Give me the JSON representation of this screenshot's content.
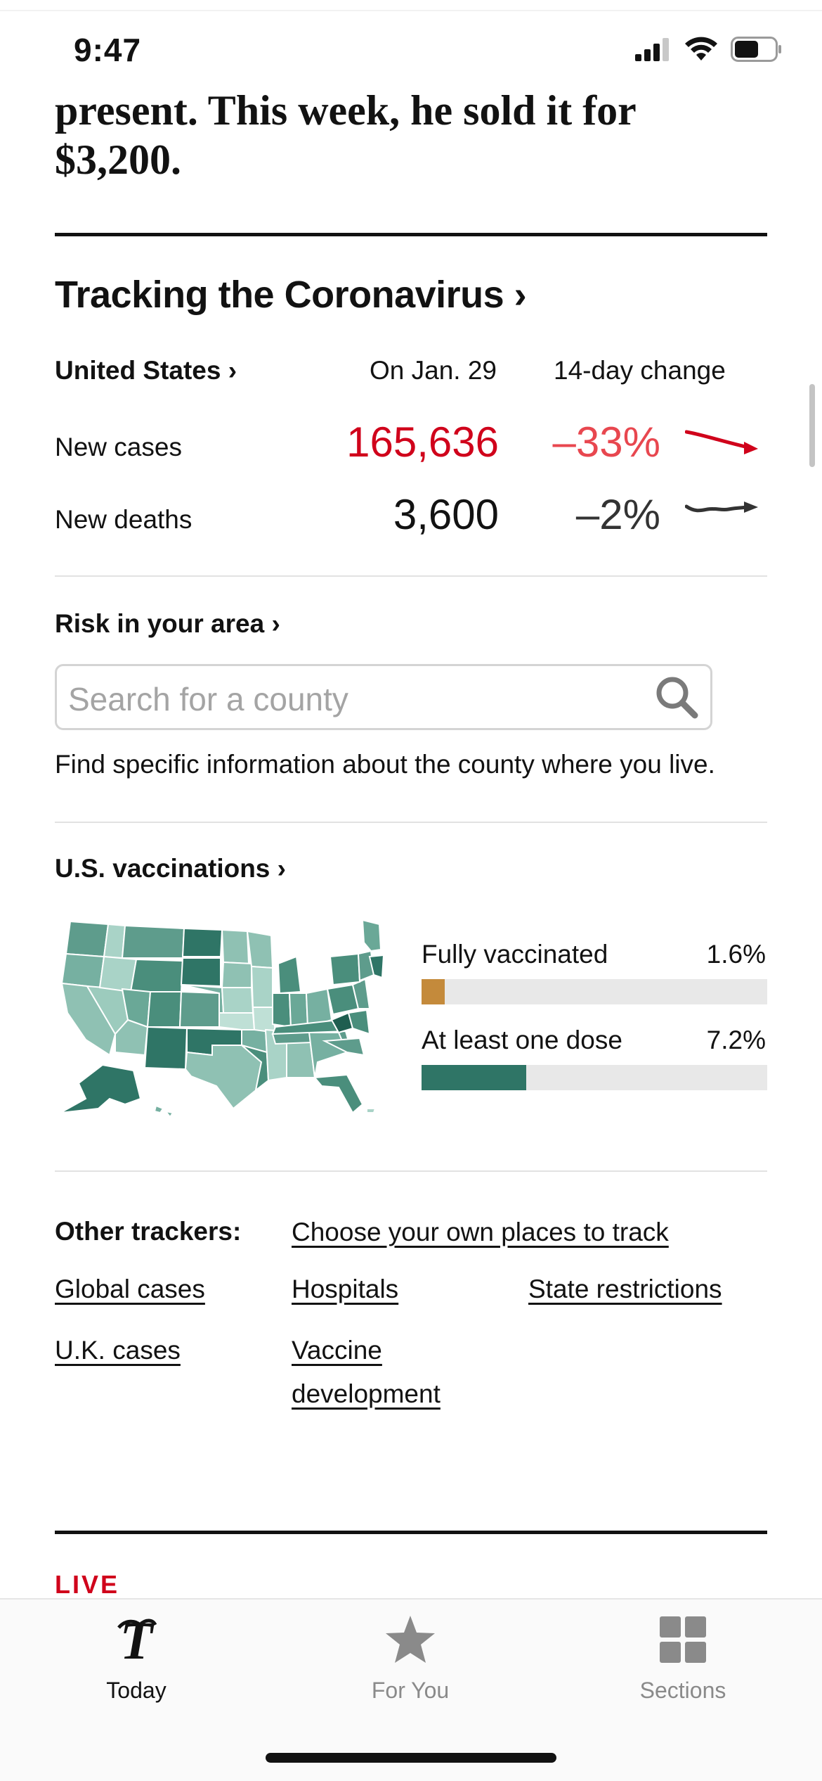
{
  "status_bar": {
    "time": "9:47",
    "battery_level": 0.6
  },
  "article": {
    "headline": "present. This week, he sold it for $3,200."
  },
  "tracker": {
    "title": "Tracking the Coronavirus ›",
    "region_link": "United States ›",
    "date_header": "On Jan. 29",
    "change_header": "14-day change",
    "rows": [
      {
        "label": "New cases",
        "value": "165,636",
        "change": "–33%",
        "color": "#d0021b",
        "change_color": "#e8474f",
        "trend": "down"
      },
      {
        "label": "New deaths",
        "value": "3,600",
        "change": "–2%",
        "color": "#121212",
        "change_color": "#333333",
        "trend": "flat"
      }
    ]
  },
  "risk": {
    "title": "Risk in your area ›",
    "search_placeholder": "Search for a county",
    "description": "Find specific information about the county where you live."
  },
  "vaccinations": {
    "title": "U.S. vaccinations ›",
    "items": [
      {
        "label": "Fully vaccinated",
        "value": "1.6%",
        "fraction": 0.016,
        "color": "#c48a3b"
      },
      {
        "label": "At least one dose",
        "value": "7.2%",
        "fraction": 0.072,
        "color": "#2f7566"
      }
    ]
  },
  "other_trackers": {
    "title": "Other trackers:",
    "links": {
      "own_places": "Choose your own places to track",
      "global_cases": "Global cases",
      "hospitals": "Hospitals",
      "state_restrictions": "State restrictions",
      "uk_cases": "U.K. cases",
      "vaccine_dev_line1": "Vaccine",
      "vaccine_dev_line2": "development"
    }
  },
  "live_label": "LIVE",
  "tabbar": {
    "tabs": [
      {
        "label": "Today",
        "icon": "nyt-logo-icon",
        "active": true
      },
      {
        "label": "For You",
        "icon": "star-icon",
        "active": false
      },
      {
        "label": "Sections",
        "icon": "sections-grid-icon",
        "active": false
      }
    ],
    "active_color": "#121212",
    "inactive_color": "#8a8a8a"
  }
}
